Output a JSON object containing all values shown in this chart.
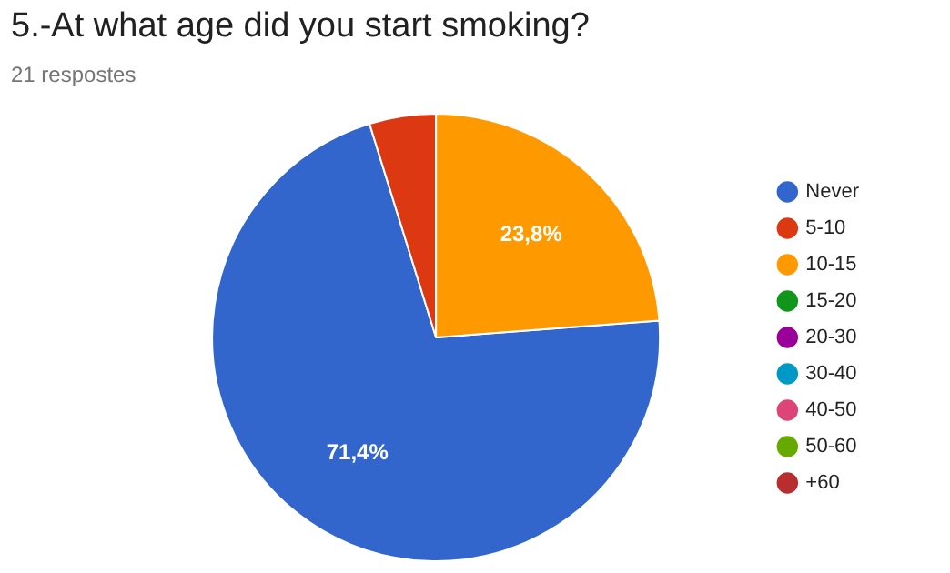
{
  "chart_data": {
    "type": "pie",
    "title": "5.-At what age did you start smoking?",
    "subtitle": "21 respostes",
    "categories": [
      "Never",
      "5-10",
      "10-15",
      "15-20",
      "20-30",
      "30-40",
      "40-50",
      "50-60",
      "+60"
    ],
    "values": [
      71.4,
      4.8,
      23.8,
      0,
      0,
      0,
      0,
      0,
      0
    ],
    "colors": [
      "#3366cc",
      "#dc3912",
      "#ff9900",
      "#109618",
      "#990099",
      "#0099c6",
      "#dd4477",
      "#66aa00",
      "#b82e2e"
    ],
    "value_labels": [
      "71,4%",
      null,
      "23,8%",
      null,
      null,
      null,
      null,
      null,
      null
    ],
    "legend": "right"
  }
}
